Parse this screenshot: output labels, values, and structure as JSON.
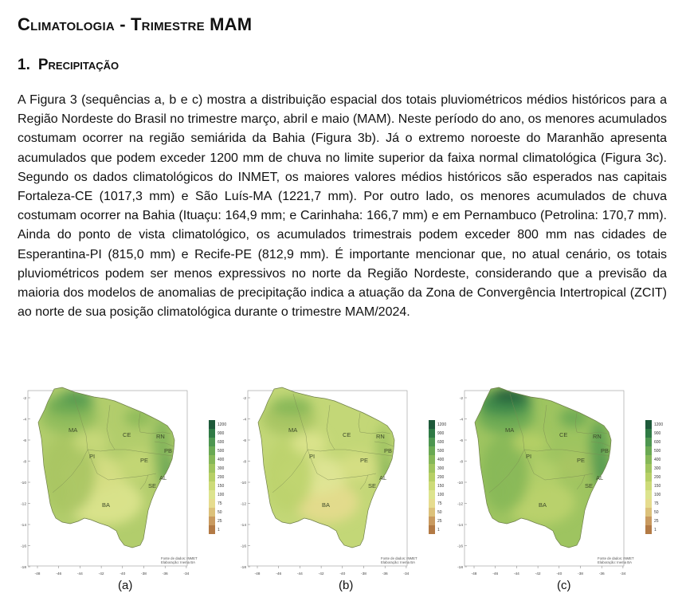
{
  "document": {
    "title": "Climatologia - Trimestre MAM",
    "section": {
      "number": "1.",
      "title": "Precipitação"
    },
    "paragraph": "A Figura 3 (sequências a, b e c) mostra a distribuição espacial dos totais pluviométricos médios históricos para a Região Nordeste do Brasil no trimestre março, abril e maio (MAM). Neste período do ano, os menores acumulados costumam ocorrer na região semiárida da Bahia (Figura 3b). Já o extremo noroeste do Maranhão apresenta acumulados que podem exceder 1200 mm de chuva no limite superior da faixa normal climatológica (Figura 3c). Segundo os dados climatológicos do INMET, os maiores valores médios históricos são esperados nas capitais Fortaleza-CE (1017,3 mm) e São Luís-MA (1221,7 mm). Por outro lado, os menores acumulados de chuva costumam ocorrer na Bahia (Ituaçu: 164,9 mm; e Carinhaha: 166,7 mm) e em Pernambuco (Petrolina: 170,7 mm). Ainda do ponto de vista climatológico, os acumulados trimestrais podem exceder 800 mm nas cidades de Esperantina-PI (815,0 mm) e Recife-PE (812,9 mm). É importante mencionar que, no atual cenário, os totais pluviométricos podem ser menos expressivos no norte da Região Nordeste, considerando que a previsão da maioria dos modelos de anomalias de precipitação indica a atuação da Zona de Convergência Intertropical (ZCIT) ao norte de sua posição climatológica durante o trimestre MAM/2024."
  },
  "maps": [
    {
      "label": "(a)",
      "variant": "normal"
    },
    {
      "label": "(b)",
      "variant": "lower"
    },
    {
      "label": "(c)",
      "variant": "upper"
    }
  ],
  "map_common": {
    "y_ticks": [
      "-2",
      "-4",
      "-6",
      "-8",
      "-10",
      "-12",
      "-14",
      "-16",
      "-18"
    ],
    "x_ticks": [
      "-48",
      "-46",
      "-44",
      "-42",
      "-40",
      "-38",
      "-36",
      "-34"
    ],
    "states": [
      "MA",
      "CE",
      "RN",
      "PB",
      "PI",
      "PE",
      "AL",
      "SE",
      "BA"
    ],
    "legend_values": [
      "1200",
      "900",
      "600",
      "500",
      "400",
      "300",
      "200",
      "150",
      "100",
      "75",
      "50",
      "25",
      "1"
    ],
    "legend_colors": [
      "#1e5a3a",
      "#2f7a45",
      "#4d9650",
      "#6aa953",
      "#86b858",
      "#a0c55e",
      "#b7d066",
      "#cddb78",
      "#dde48e",
      "#e6dc8e",
      "#dcc17a",
      "#c99a5f",
      "#b37a45"
    ],
    "credit_line1": "Fonte de dados: INMET",
    "credit_line2": "Elaboração: Inema BA"
  }
}
